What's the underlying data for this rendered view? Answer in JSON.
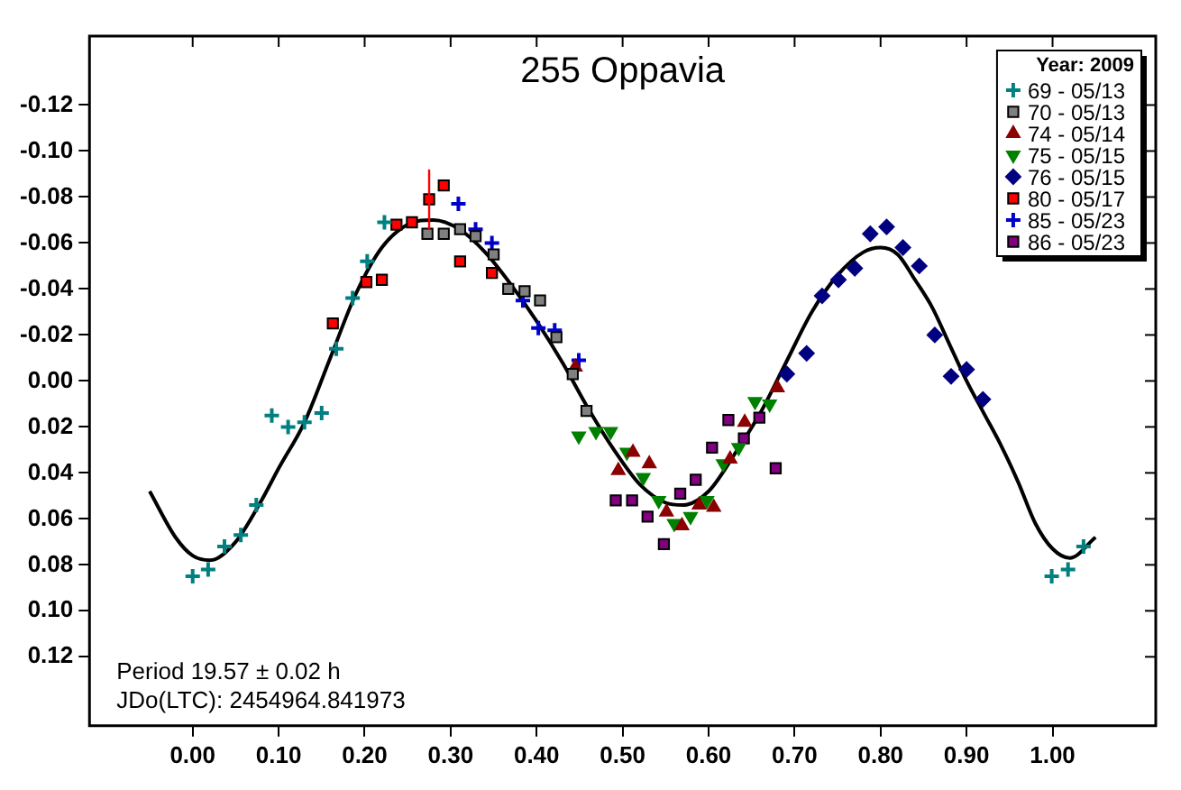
{
  "chart_data": {
    "type": "scatter",
    "title": "255 Oppavia",
    "legend_title": "Year: 2009",
    "legend": "top right",
    "grid": false,
    "xlim": [
      -0.12,
      1.12
    ],
    "ylim": [
      0.15,
      -0.15
    ],
    "xticks": [
      {
        "value": 0,
        "label": "0.00"
      },
      {
        "value": 0.1,
        "label": "0.10"
      },
      {
        "value": 0.2,
        "label": "0.20"
      },
      {
        "value": 0.3,
        "label": "0.30"
      },
      {
        "value": 0.4,
        "label": "0.40"
      },
      {
        "value": 0.5,
        "label": "0.50"
      },
      {
        "value": 0.6,
        "label": "0.60"
      },
      {
        "value": 0.7,
        "label": "0.70"
      },
      {
        "value": 0.8,
        "label": "0.80"
      },
      {
        "value": 0.9,
        "label": "0.90"
      },
      {
        "value": 1,
        "label": "1.00"
      }
    ],
    "yticks": [
      -0.12,
      {
        "value": -0.1,
        "label": "-0.10"
      },
      -0.08,
      -0.06,
      -0.04,
      -0.02,
      {
        "value": 0,
        "label": "0.00"
      },
      0.02,
      0.04,
      0.06,
      0.08,
      {
        "value": 0.1,
        "label": "0.10"
      },
      0.12
    ],
    "annotations": [
      "Period 19.57 ± 0.02 h",
      "JDo(LTC): 2454964.841973"
    ],
    "series": [
      {
        "name": "69 - 05/13",
        "color": "#008080",
        "marker": "cross",
        "x": [
          0,
          0.018,
          0.037,
          0.056,
          0.074,
          0.092,
          0.111,
          0.13,
          0.15,
          0.167,
          0.186,
          0.203,
          0.223,
          0.999,
          1.018,
          1.036
        ],
        "values": [
          0.085,
          0.082,
          0.072,
          0.067,
          0.054,
          0.015,
          0.02,
          0.018,
          0.014,
          -0.014,
          -0.036,
          -0.052,
          -0.069,
          0.085,
          0.082,
          0.072
        ]
      },
      {
        "name": "70 - 05/13",
        "color": "#808080",
        "marker": "square",
        "x": [
          0.273,
          0.292,
          0.311,
          0.329,
          0.35,
          0.367,
          0.386,
          0.404,
          0.423,
          0.442,
          0.458
        ],
        "values": [
          -0.064,
          -0.064,
          -0.066,
          -0.063,
          -0.055,
          -0.04,
          -0.039,
          -0.035,
          -0.019,
          -0.003,
          0.013
        ]
      },
      {
        "name": "74 - 05/14",
        "color": "#8b0000",
        "marker": "triangle",
        "x": [
          0.445,
          0.495,
          0.512,
          0.531,
          0.551,
          0.569,
          0.589,
          0.606,
          0.625,
          0.642,
          0.68
        ],
        "values": [
          -0.006,
          0.039,
          0.031,
          0.036,
          0.057,
          0.063,
          0.054,
          0.055,
          0.034,
          0.018,
          0.003
        ]
      },
      {
        "name": "75 - 05/15",
        "color": "#008000",
        "marker": "triangle-down",
        "x": [
          0.449,
          0.469,
          0.486,
          0.505,
          0.524,
          0.542,
          0.56,
          0.579,
          0.598,
          0.617,
          0.635,
          0.654,
          0.671
        ],
        "values": [
          0.024,
          0.022,
          0.022,
          0.031,
          0.042,
          0.052,
          0.062,
          0.059,
          0.052,
          0.036,
          0.029,
          0.009,
          0.01
        ]
      },
      {
        "name": "76 - 05/15",
        "color": "#000080",
        "marker": "diamond",
        "x": [
          0.691,
          0.714,
          0.732,
          0.751,
          0.77,
          0.788,
          0.807,
          0.826,
          0.845,
          0.863,
          0.882,
          0.9,
          0.919
        ],
        "values": [
          -0.003,
          -0.012,
          -0.037,
          -0.044,
          -0.049,
          -0.064,
          -0.067,
          -0.058,
          -0.05,
          -0.02,
          -0.002,
          -0.005,
          0.008
        ]
      },
      {
        "name": "80 - 05/17",
        "color": "#ff0000",
        "marker": "square",
        "x": [
          0.163,
          0.202,
          0.22,
          0.237,
          0.255,
          0.275,
          0.292,
          0.311,
          0.348
        ],
        "values": [
          -0.025,
          -0.043,
          -0.044,
          -0.068,
          -0.069,
          -0.079,
          -0.085,
          -0.052,
          -0.047
        ],
        "errors": [
          null,
          null,
          null,
          null,
          null,
          0.013,
          null,
          null,
          null
        ]
      },
      {
        "name": "85 - 05/23",
        "color": "#0000cd",
        "marker": "cross",
        "x": [
          0.309,
          0.329,
          0.348,
          0.384,
          0.402,
          0.421,
          0.449
        ],
        "values": [
          -0.077,
          -0.066,
          -0.06,
          -0.035,
          -0.023,
          -0.022,
          -0.009
        ]
      },
      {
        "name": "86 - 05/23",
        "color": "#800080",
        "marker": "square",
        "x": [
          0.492,
          0.511,
          0.529,
          0.548,
          0.567,
          0.585,
          0.604,
          0.623,
          0.641,
          0.659,
          0.678
        ],
        "values": [
          0.052,
          0.052,
          0.059,
          0.071,
          0.049,
          0.043,
          0.029,
          0.017,
          0.025,
          0.016,
          0.038
        ]
      },
      {
        "type": "line",
        "color": "#000000",
        "marker": "none",
        "line_style": "solid",
        "x": [
          -0.05,
          -0.02,
          0,
          0.02,
          0.05,
          0.08,
          0.1,
          0.13,
          0.16,
          0.19,
          0.22,
          0.25,
          0.28,
          0.31,
          0.34,
          0.37,
          0.4,
          0.43,
          0.46,
          0.49,
          0.52,
          0.55,
          0.57,
          0.6,
          0.63,
          0.66,
          0.69,
          0.72,
          0.75,
          0.78,
          0.8,
          0.82,
          0.84,
          0.86,
          0.88,
          0.9,
          0.92,
          0.94,
          0.96,
          0.98,
          1,
          1.02,
          1.05
        ],
        "values": [
          0.048,
          0.068,
          0.076,
          0.078,
          0.07,
          0.052,
          0.038,
          0.018,
          -0.01,
          -0.038,
          -0.058,
          -0.068,
          -0.07,
          -0.066,
          -0.056,
          -0.042,
          -0.026,
          -0.008,
          0.012,
          0.03,
          0.045,
          0.053,
          0.054,
          0.048,
          0.032,
          0.014,
          -0.008,
          -0.03,
          -0.046,
          -0.056,
          -0.058,
          -0.055,
          -0.044,
          -0.032,
          -0.016,
          0,
          0.014,
          0.028,
          0.044,
          0.062,
          0.073,
          0.077,
          0.068
        ]
      }
    ]
  }
}
